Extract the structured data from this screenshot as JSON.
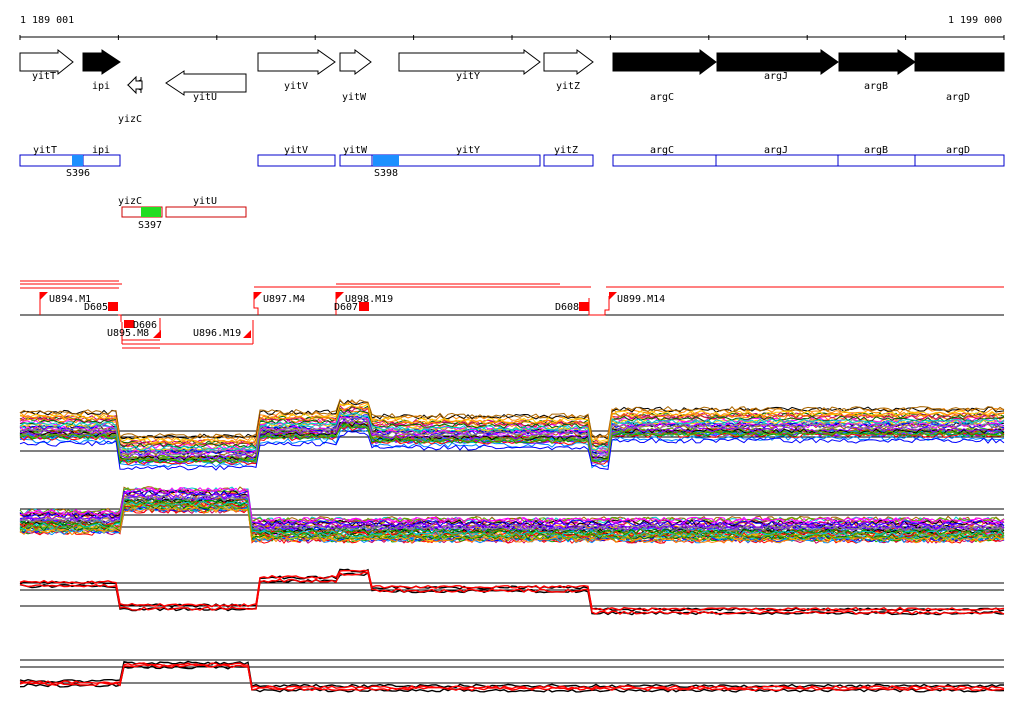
{
  "coordinates": {
    "start": "1 189 001",
    "end": "1 199 000"
  },
  "genes": [
    {
      "name": "yitT",
      "strand": "+",
      "filled": false
    },
    {
      "name": "ipi",
      "strand": "+",
      "filled": true
    },
    {
      "name": "yizC",
      "strand": "-",
      "filled": false
    },
    {
      "name": "yitU",
      "strand": "-",
      "filled": false
    },
    {
      "name": "yitV",
      "strand": "+",
      "filled": false
    },
    {
      "name": "yitW",
      "strand": "+",
      "filled": false
    },
    {
      "name": "yitY",
      "strand": "+",
      "filled": false
    },
    {
      "name": "yitZ",
      "strand": "+",
      "filled": false
    },
    {
      "name": "argC",
      "strand": "+",
      "filled": true
    },
    {
      "name": "argJ",
      "strand": "+",
      "filled": true
    },
    {
      "name": "argB",
      "strand": "+",
      "filled": true
    },
    {
      "name": "argD",
      "strand": "+",
      "filled": true
    }
  ],
  "transcription_units": {
    "forward": [
      "yitT",
      "ipi",
      "yitV",
      "yitW",
      "yitY",
      "yitZ",
      "argC",
      "argJ",
      "argB",
      "argD"
    ],
    "reverse": [
      "yizC",
      "yitU"
    ]
  },
  "sites": [
    {
      "name": "S396",
      "color": "#1e90ff"
    },
    {
      "name": "S398",
      "color": "#1e90ff"
    },
    {
      "name": "S397",
      "color": "#22dd22"
    }
  ],
  "segments": {
    "upshifts": [
      "U894.M1",
      "U895.M8",
      "U896.M19",
      "U897.M4",
      "U898.M19",
      "U899.M14"
    ],
    "downshifts": [
      "D605",
      "D606",
      "D607",
      "D608"
    ]
  },
  "colors": {
    "gene_outline": "#0000cc",
    "reverse_outline": "#cc0000",
    "marker": "#ff0000"
  },
  "tracks": [
    {
      "id": "track-1",
      "type": "multi-condition"
    },
    {
      "id": "track-2",
      "type": "multi-condition"
    },
    {
      "id": "track-3",
      "type": "replicate"
    },
    {
      "id": "track-4",
      "type": "replicate"
    }
  ]
}
